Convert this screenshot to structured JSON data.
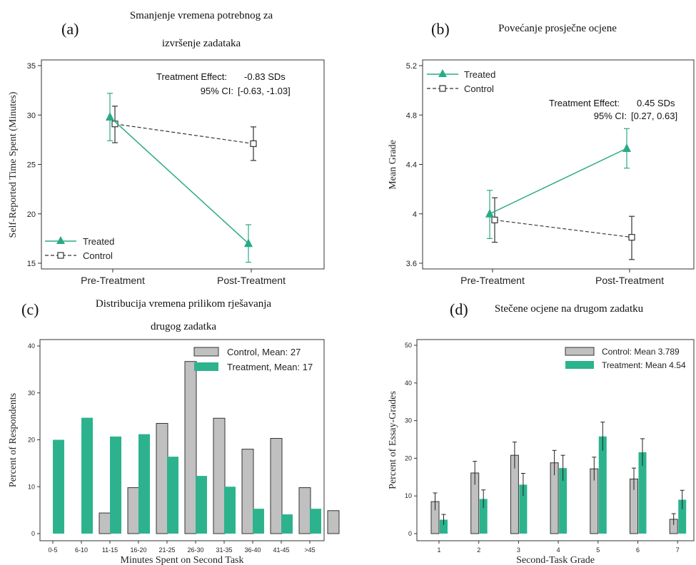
{
  "colors": {
    "treated": "#2aaa86",
    "control": "#333333",
    "control_bar": "#c0c0c0",
    "treatment_bar": "#2cb38e"
  },
  "panels": {
    "a": {
      "letter": "(a)",
      "title_line1": "Smanjenje vremena potrebnog za",
      "title_line2": "izvršenje zadataka",
      "annotation_label": "Treatment Effect:",
      "annotation_value": "-0.83 SDs",
      "ci_label": "95% CI:",
      "ci_value": "[-0.63, -1.03]",
      "legend_treated": "Treated",
      "legend_control": "Control"
    },
    "b": {
      "letter": "(b)",
      "title": "Povećanje prosječne ocjene",
      "annotation_label": "Treatment Effect:",
      "annotation_value": "0.45 SDs",
      "ci_label": "95% CI:",
      "ci_value": "[0.27, 0.63]",
      "legend_treated": "Treated",
      "legend_control": "Control"
    },
    "c": {
      "letter": "(c)",
      "title_line1": "Distribucija vremena prilikom rješavanja",
      "title_line2": "drugog zadatka",
      "legend_control": "Control, Mean: 27",
      "legend_treatment": "Treatment, Mean: 17"
    },
    "d": {
      "letter": "(d)",
      "title": "Stečene ocjene na drugom zadatku",
      "legend_control": "Control: Mean 3.789",
      "legend_treatment": "Treatment: Mean 4.54"
    }
  },
  "chart_data": [
    {
      "type": "line",
      "categories": [
        "Pre-Treatment",
        "Post-Treatment"
      ],
      "ylabel": "Self-Reported Time Spent (Minutes)",
      "xlabel": "",
      "ylim": [
        15,
        35
      ],
      "yticks": [
        15,
        20,
        25,
        30,
        35
      ],
      "legend_position": "bottom-left",
      "series": [
        {
          "name": "Treated",
          "values": [
            29.8,
            17.0
          ],
          "err_low": [
            27.4,
            15.1
          ],
          "err_high": [
            32.2,
            18.9
          ]
        },
        {
          "name": "Control",
          "values": [
            29.1,
            27.1
          ],
          "err_low": [
            27.2,
            25.4
          ],
          "err_high": [
            30.9,
            28.8
          ]
        }
      ]
    },
    {
      "type": "line",
      "categories": [
        "Pre-Treatment",
        "Post-Treatment"
      ],
      "ylabel": "Mean Grade",
      "xlabel": "",
      "ylim": [
        3.6,
        5.2
      ],
      "yticks": [
        3.6,
        4,
        4.4,
        4.8,
        5.2
      ],
      "ytick_labels": [
        "3.6",
        "4",
        "4.4",
        "4.8",
        "5.2"
      ],
      "legend_position": "top-left",
      "series": [
        {
          "name": "Treated",
          "values": [
            4.0,
            4.53
          ],
          "err_low": [
            3.8,
            4.37
          ],
          "err_high": [
            4.19,
            4.69
          ]
        },
        {
          "name": "Control",
          "values": [
            3.95,
            3.81
          ],
          "err_low": [
            3.77,
            3.63
          ],
          "err_high": [
            4.13,
            3.98
          ]
        }
      ]
    },
    {
      "type": "bar",
      "categories": [
        "0-5",
        "6-10",
        "11-15",
        "16-20",
        "21-25",
        "26-30",
        "31-35",
        "36-40",
        "41-45",
        ">45"
      ],
      "xlabel": "Minutes Spent on Second Task",
      "ylabel": "Percent of Respondents",
      "ylim": [
        0,
        40
      ],
      "yticks": [
        0,
        10,
        20,
        30,
        40
      ],
      "legend_position": "top-right",
      "series": [
        {
          "name": "Control, Mean: 27",
          "values": [
            0,
            4.4,
            9.8,
            23.5,
            36.7,
            24.6,
            18.0,
            20.3,
            9.8,
            4.9
          ]
        },
        {
          "name": "Treatment, Mean: 17",
          "values": [
            20.0,
            24.7,
            20.7,
            21.2,
            16.4,
            12.3,
            10.0,
            5.3,
            4.1,
            5.3
          ]
        }
      ]
    },
    {
      "type": "bar",
      "categories": [
        "1",
        "2",
        "3",
        "4",
        "5",
        "6",
        "7"
      ],
      "xlabel": "Second-Task Grade",
      "ylabel": "Percent of Essay-Grades",
      "ylim": [
        0,
        50
      ],
      "yticks": [
        0,
        10,
        20,
        30,
        40,
        50
      ],
      "legend_position": "top-right",
      "series": [
        {
          "name": "Control: Mean 3.789",
          "values": [
            8.5,
            16.1,
            20.8,
            18.8,
            17.2,
            14.5,
            3.8
          ],
          "err_low": [
            6.2,
            13.0,
            17.3,
            15.5,
            14.1,
            11.6,
            2.3
          ],
          "err_high": [
            10.8,
            19.2,
            24.3,
            22.1,
            20.3,
            17.4,
            5.3
          ]
        },
        {
          "name": "Treatment: Mean 4.54",
          "values": [
            3.7,
            9.2,
            13.0,
            17.4,
            25.8,
            21.6,
            9.0
          ],
          "err_low": [
            2.3,
            6.8,
            10.0,
            14.0,
            22.0,
            18.0,
            6.5
          ],
          "err_high": [
            5.1,
            11.6,
            16.0,
            20.8,
            29.6,
            25.2,
            11.5
          ]
        }
      ]
    }
  ]
}
